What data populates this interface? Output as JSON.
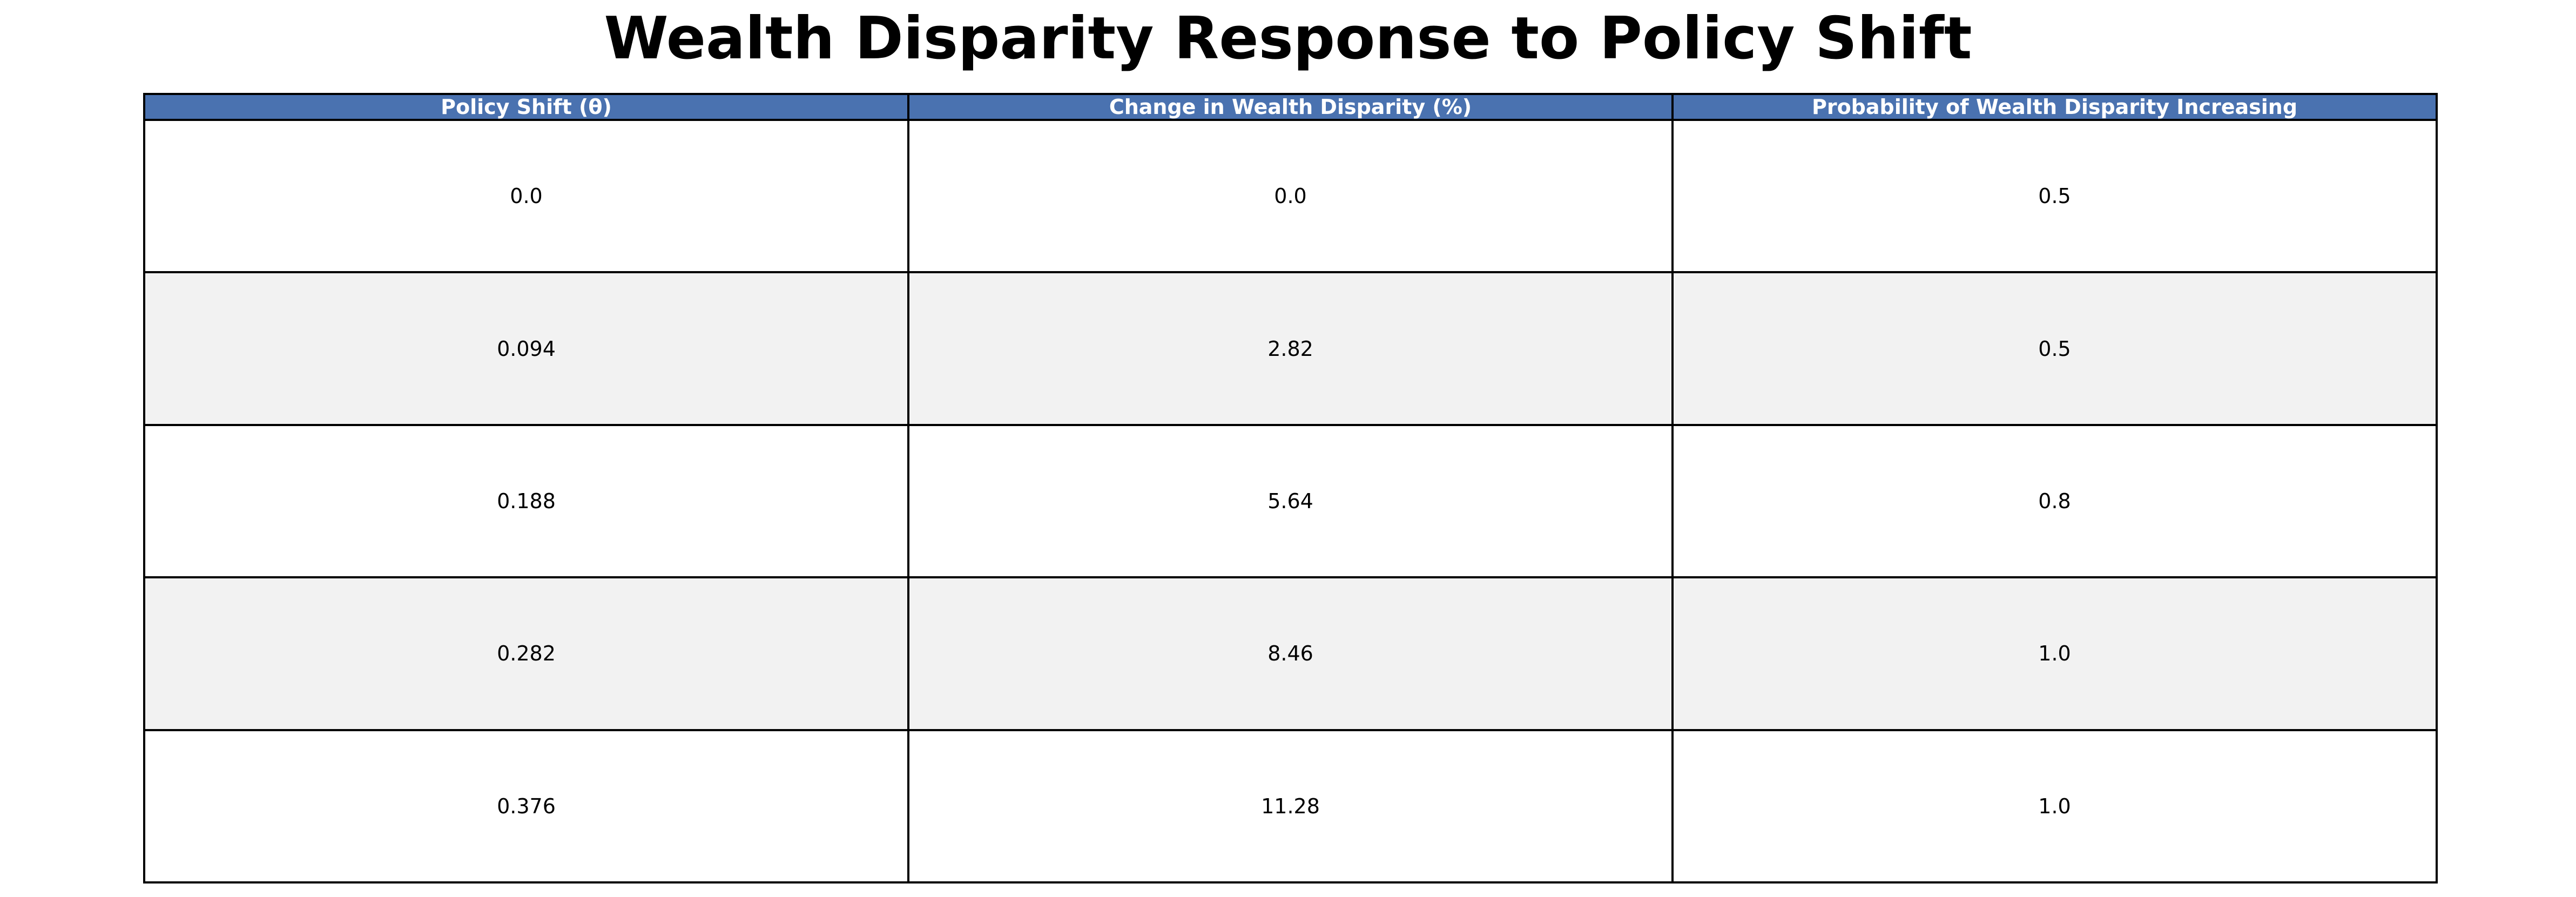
{
  "chart_data": {
    "type": "table",
    "title": "Wealth Disparity Response to Policy Shift",
    "columns": [
      "Policy Shift (θ)",
      "Change in Wealth Disparity (%)",
      "Probability of Wealth Disparity Increasing"
    ],
    "rows": [
      [
        "0.0",
        "0.0",
        "0.5"
      ],
      [
        "0.094",
        "2.82",
        "0.5"
      ],
      [
        "0.188",
        "5.64",
        "0.8"
      ],
      [
        "0.282",
        "8.46",
        "1.0"
      ],
      [
        "0.376",
        "11.28",
        "1.0"
      ]
    ],
    "colors": {
      "header_background": "#4a72b0",
      "header_text": "#ffffff",
      "row_stripe": "#f2f2f2",
      "row_background": "#ffffff",
      "border": "#000000"
    }
  }
}
